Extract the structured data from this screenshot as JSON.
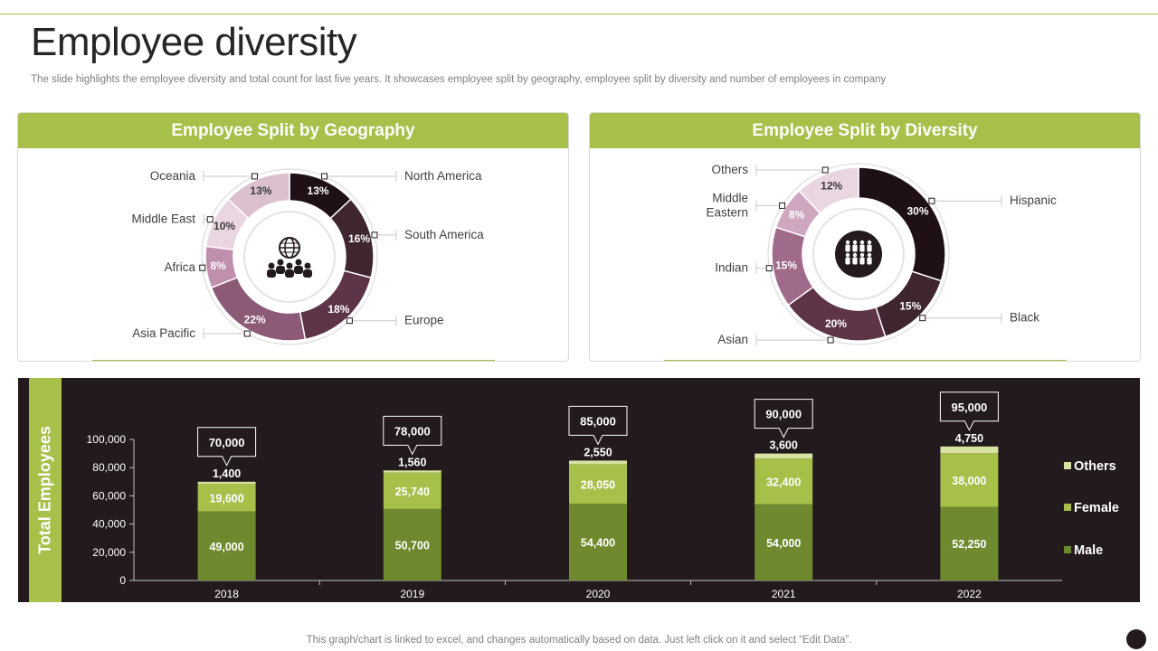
{
  "page": {
    "title": "Employee diversity",
    "subtitle": "The slide highlights the employee diversity and total count for last five years. It showcases employee split by geography, employee split by diversity and number of employees in company",
    "footer": "This graph/chart is linked to excel,  and changes automatically based on data. Just left click on it and select “Edit Data”."
  },
  "colors": {
    "accent_green": "#a7c04a",
    "dark_plum": "#231a1e",
    "male": "#6f8a2e",
    "female": "#a7c04a",
    "others": "#d7e3a3"
  },
  "chart_data": [
    {
      "type": "pie",
      "variant": "donut",
      "title": "Employee Split by Geography",
      "center_icon": "globe-people-icon",
      "labels": [
        "North America",
        "South America",
        "Europe",
        "Asia Pacific",
        "Africa",
        "Middle East",
        "Oceania"
      ],
      "values": [
        13,
        16,
        18,
        22,
        8,
        10,
        13
      ],
      "value_labels": [
        "13%",
        "16%",
        "18%",
        "22%",
        "8%",
        "10%",
        "13%"
      ],
      "slice_colors": [
        "#1e1016",
        "#3e2530",
        "#5e3449",
        "#8c5a76",
        "#c08fae",
        "#ead6e1",
        "#dcc0cf"
      ],
      "label_colors": [
        "#ffffff",
        "#ffffff",
        "#ffffff",
        "#ffffff",
        "#ffffff",
        "#3a3a3a",
        "#3a3a3a"
      ]
    },
    {
      "type": "pie",
      "variant": "donut",
      "title": "Employee Split by Diversity",
      "center_icon": "people-group-icon",
      "labels": [
        "Hispanic",
        "Black",
        "Asian",
        "Indian",
        "Middle Eastern",
        "Others"
      ],
      "display_labels": [
        "Hispanic",
        "Black",
        "Asian",
        "Indian",
        "Middle\nEastern",
        "Others"
      ],
      "values": [
        30,
        15,
        20,
        15,
        8,
        12
      ],
      "value_labels": [
        "30%",
        "15%",
        "20%",
        "15%",
        "8%",
        "12%"
      ],
      "slice_colors": [
        "#1e1016",
        "#3e2530",
        "#5e3449",
        "#a06a8a",
        "#cfa6bf",
        "#ead6e1"
      ],
      "label_colors": [
        "#ffffff",
        "#ffffff",
        "#ffffff",
        "#ffffff",
        "#ffffff",
        "#3a3a3a"
      ]
    },
    {
      "type": "bar",
      "stacked": true,
      "ylabel": "Total Employees",
      "categories": [
        "2018",
        "2019",
        "2020",
        "2021",
        "2022"
      ],
      "series": [
        {
          "name": "Male",
          "values": [
            49000,
            50700,
            54400,
            54000,
            52250
          ],
          "labels": [
            "49,000",
            "50,700",
            "54,400",
            "54,000",
            "52,250"
          ]
        },
        {
          "name": "Female",
          "values": [
            19600,
            25740,
            28050,
            32400,
            38000
          ],
          "labels": [
            "19,600",
            "25,740",
            "28,050",
            "32,400",
            "38,000"
          ]
        },
        {
          "name": "Others",
          "values": [
            1400,
            1560,
            2550,
            3600,
            4750
          ],
          "labels": [
            "1,400",
            "1,560",
            "2,550",
            "3,600",
            "4,750"
          ]
        }
      ],
      "totals": [
        70000,
        78000,
        85000,
        90000,
        95000
      ],
      "total_labels": [
        "70,000",
        "78,000",
        "85,000",
        "90,000",
        "95,000"
      ],
      "ylim": [
        0,
        100000
      ],
      "yticks": [
        0,
        20000,
        40000,
        60000,
        80000,
        100000
      ],
      "ytick_labels": [
        "0",
        "20,000",
        "40,000",
        "60,000",
        "80,000",
        "100,000"
      ],
      "legend": [
        "Others",
        "Female",
        "Male"
      ],
      "legend_position": "right"
    }
  ]
}
